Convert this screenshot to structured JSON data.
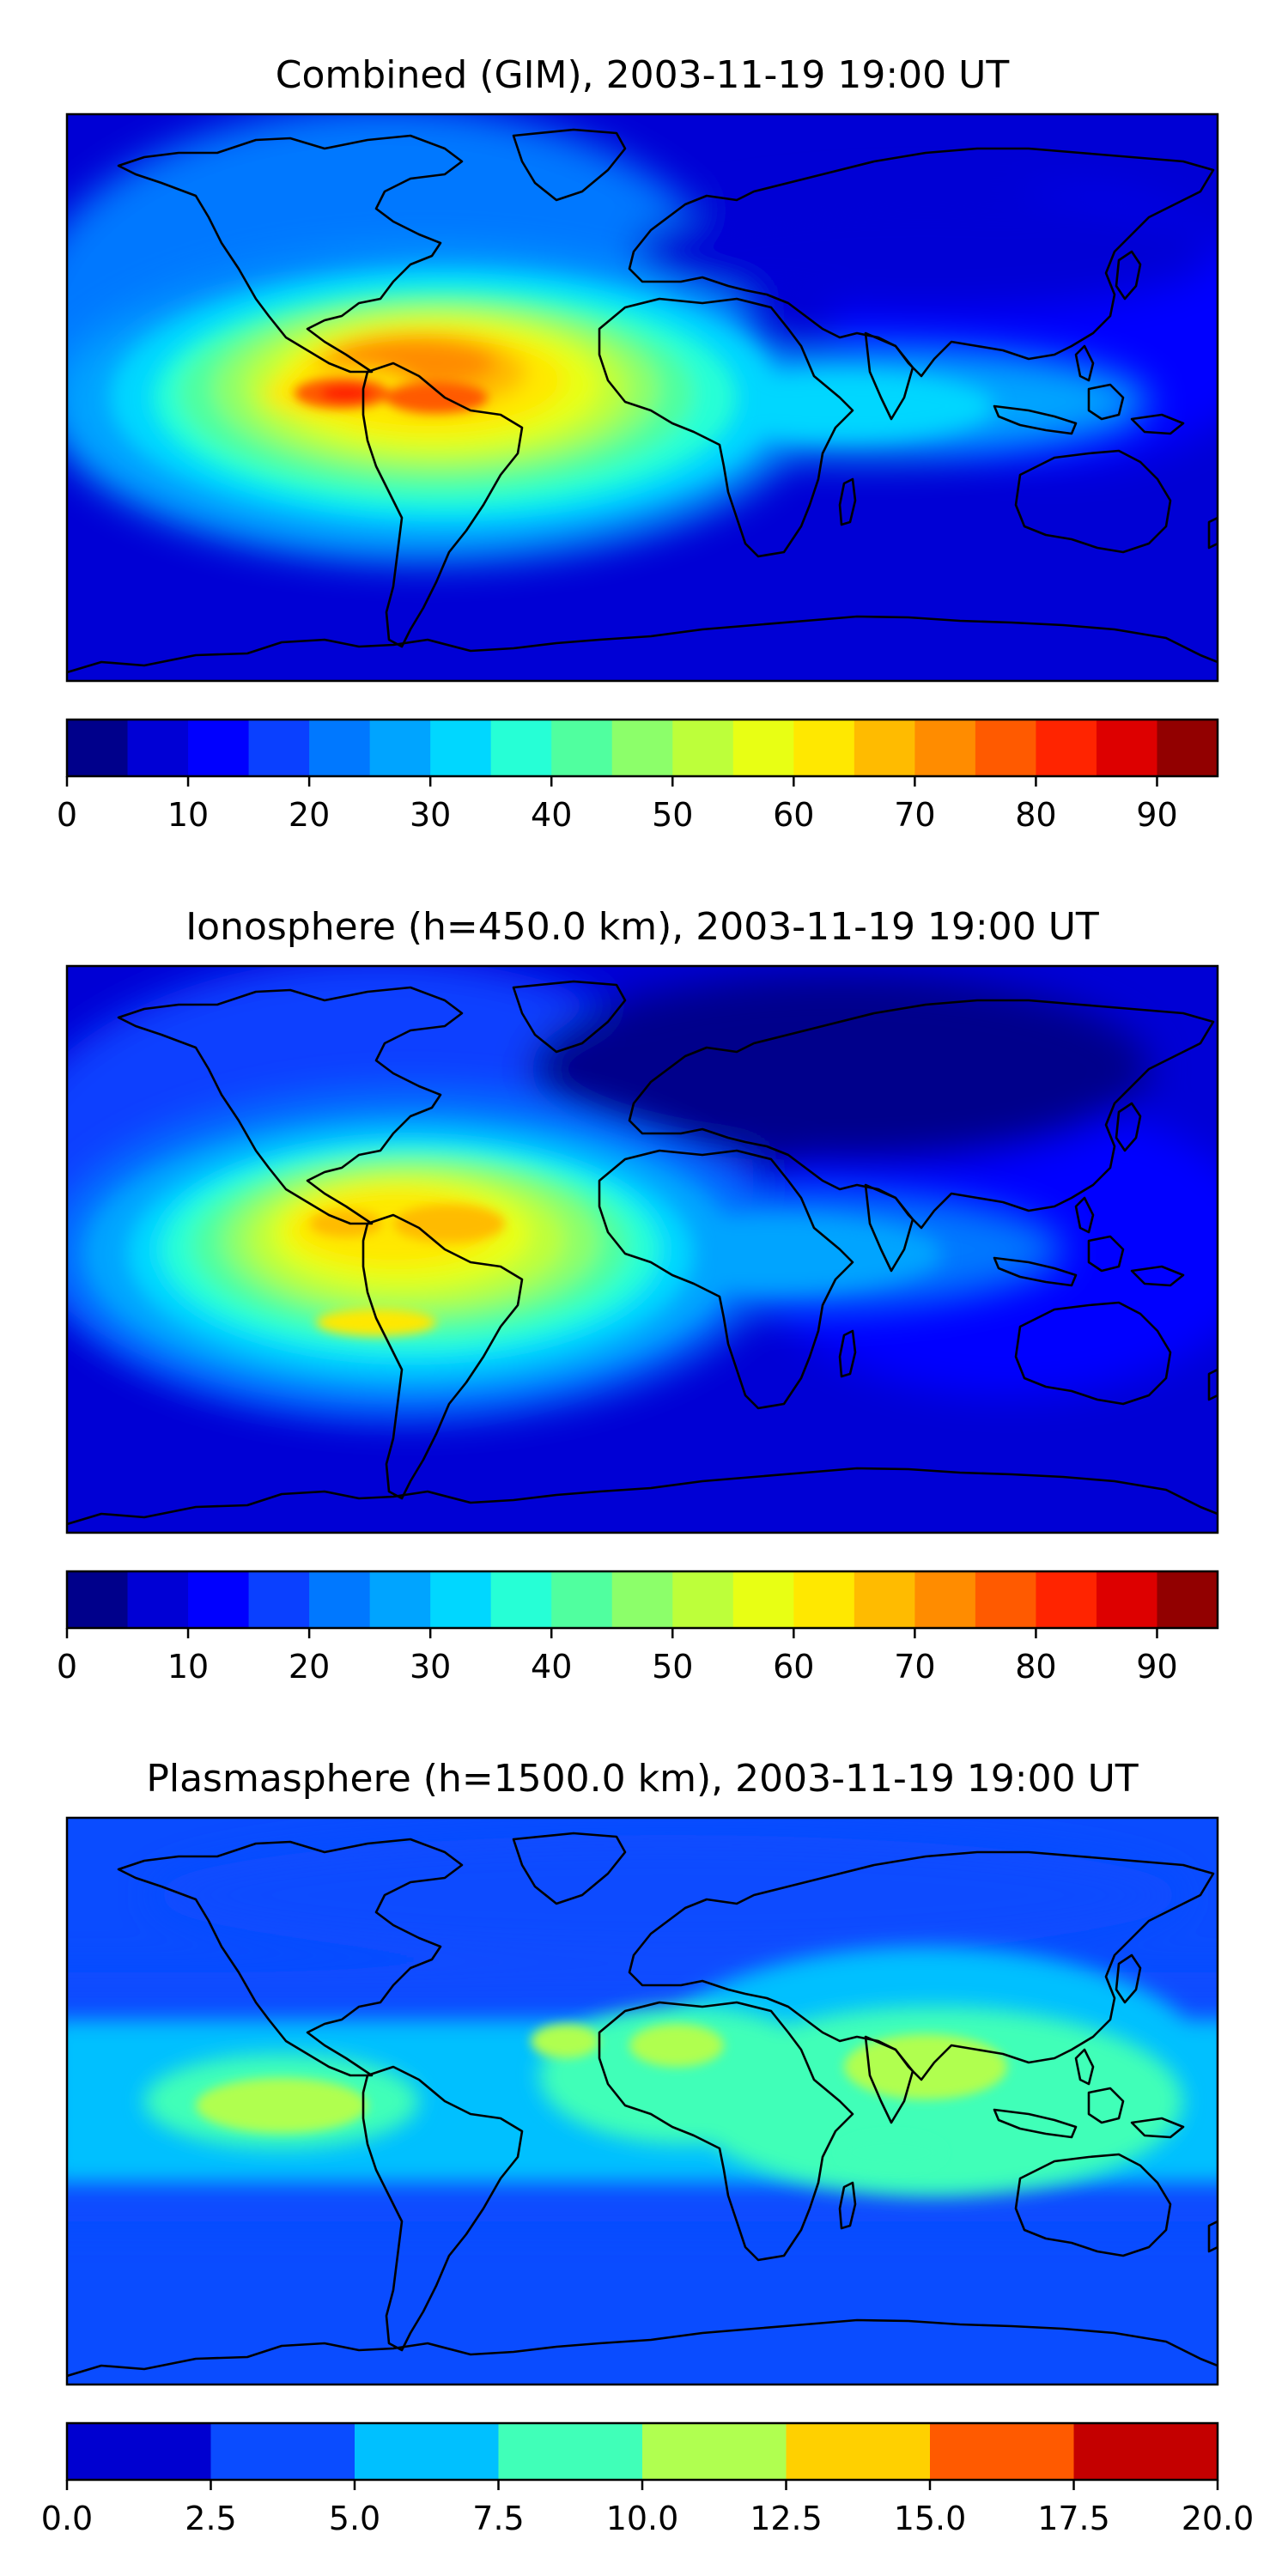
{
  "chart_data": [
    {
      "type": "heatmap",
      "title": "Combined (GIM), 2003-11-19 19:00 UT",
      "colorbar": {
        "ticks": [
          "0",
          "10",
          "20",
          "30",
          "40",
          "50",
          "60",
          "70",
          "80",
          "90"
        ],
        "tick_values": [
          0,
          10,
          20,
          30,
          40,
          50,
          60,
          70,
          80,
          90
        ],
        "range": [
          0,
          95
        ],
        "levels": [
          0,
          5,
          10,
          15,
          20,
          25,
          30,
          35,
          40,
          45,
          50,
          55,
          60,
          65,
          70,
          75,
          80,
          85,
          90,
          95
        ],
        "colors": [
          "#00008b",
          "#0000d5",
          "#0000ff",
          "#0a40ff",
          "#0078ff",
          "#00a4ff",
          "#00d7ff",
          "#26ffd6",
          "#50ff9f",
          "#8cff6a",
          "#bdff3a",
          "#e8ff14",
          "#ffe800",
          "#ffbb00",
          "#ff8c00",
          "#ff5a00",
          "#ff2400",
          "#dd0000",
          "#920000"
        ]
      },
      "features": [
        {
          "lon": -75,
          "lat": 10,
          "value": 80
        },
        {
          "lon": -50,
          "lat": 5,
          "value": 77
        },
        {
          "lon": -62,
          "lat": -8,
          "value": 62
        }
      ]
    },
    {
      "type": "heatmap",
      "title": "Ionosphere  (h=450.0 km), 2003-11-19 19:00 UT",
      "colorbar": {
        "ticks": [
          "0",
          "10",
          "20",
          "30",
          "40",
          "50",
          "60",
          "70",
          "80",
          "90"
        ],
        "tick_values": [
          0,
          10,
          20,
          30,
          40,
          50,
          60,
          70,
          80,
          90
        ],
        "range": [
          0,
          95
        ],
        "levels": [
          0,
          5,
          10,
          15,
          20,
          25,
          30,
          35,
          40,
          45,
          50,
          55,
          60,
          65,
          70,
          75,
          80,
          85,
          90,
          95
        ],
        "colors": [
          "#00008b",
          "#0000d5",
          "#0000ff",
          "#0a40ff",
          "#0078ff",
          "#00a4ff",
          "#00d7ff",
          "#26ffd6",
          "#50ff9f",
          "#8cff6a",
          "#bdff3a",
          "#e8ff14",
          "#ffe800",
          "#ffbb00",
          "#ff8c00",
          "#ff5a00",
          "#ff2400",
          "#dd0000",
          "#920000"
        ]
      },
      "features": [
        {
          "lon": -80,
          "lat": 8,
          "value": 67
        },
        {
          "lon": -50,
          "lat": 5,
          "value": 67
        },
        {
          "lon": -62,
          "lat": -12,
          "value": 60
        }
      ]
    },
    {
      "type": "heatmap",
      "title": "Plasmasphere (h=1500.0 km), 2003-11-19 19:00 UT",
      "colorbar": {
        "ticks": [
          "0.0",
          "2.5",
          "5.0",
          "7.5",
          "10.0",
          "12.5",
          "15.0",
          "17.5",
          "20.0"
        ],
        "tick_values": [
          0,
          2.5,
          5,
          7.5,
          10,
          12.5,
          15,
          17.5,
          20
        ],
        "range": [
          0,
          20
        ],
        "levels": [
          0,
          2.5,
          5,
          7.5,
          10,
          12.5,
          15,
          17.5,
          20
        ],
        "colors": [
          "#0000d0",
          "#0a4cff",
          "#00c0ff",
          "#40ffb8",
          "#b0ff50",
          "#ffd000",
          "#ff5a00",
          "#c40000"
        ]
      },
      "features": [
        {
          "lon": -95,
          "lat": -8,
          "value": 10.5
        },
        {
          "lon": -10,
          "lat": 15,
          "value": 10.5
        },
        {
          "lon": 85,
          "lat": 8,
          "value": 10.5
        },
        {
          "lon": 105,
          "lat": -5,
          "value": 8.5
        }
      ]
    }
  ]
}
